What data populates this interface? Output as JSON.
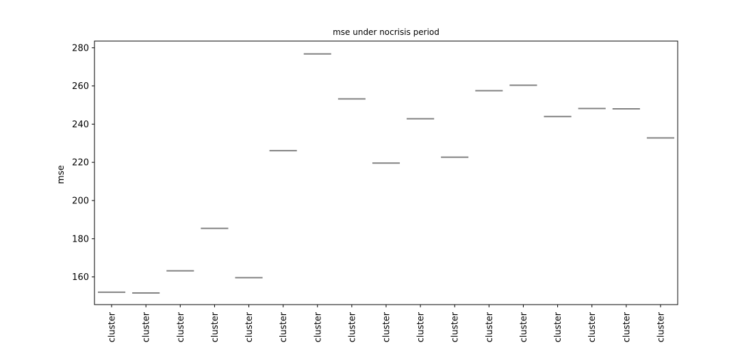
{
  "chart_data": {
    "type": "box",
    "title": "mse under nocrisis period",
    "xlabel": "",
    "ylabel": "mse",
    "ylim": [
      145.5,
      283.5
    ],
    "yticks": [
      160,
      180,
      200,
      220,
      240,
      260,
      280
    ],
    "grid": false,
    "legend": "none",
    "categories": [
      "cluster",
      "cluster",
      "cluster",
      "cluster",
      "cluster",
      "cluster",
      "cluster",
      "cluster",
      "cluster",
      "cluster",
      "cluster",
      "cluster",
      "cluster",
      "cluster",
      "cluster",
      "cluster",
      "cluster"
    ],
    "values": [
      152.0,
      151.6,
      163.2,
      185.4,
      159.6,
      226.1,
      276.8,
      253.2,
      219.6,
      242.8,
      222.7,
      257.5,
      260.4,
      244.0,
      248.2,
      248.0,
      232.8
    ],
    "colors": {
      "median_line": "#808080",
      "axes": "#000000",
      "background": "#ffffff"
    }
  }
}
